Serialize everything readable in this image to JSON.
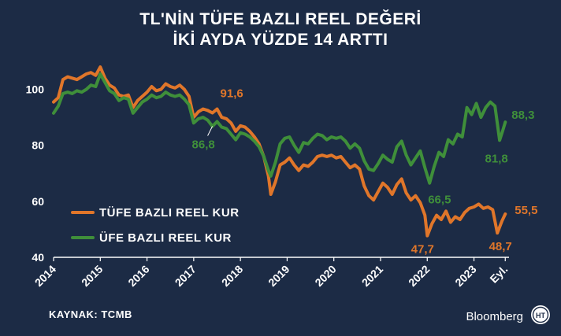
{
  "title_line1": "TL'NİN TÜFE BAZLI REEL DEĞERİ",
  "title_line2": "İKİ AYDA YÜZDE 14 ARTTI",
  "source": "KAYNAK: TCMB",
  "brand": "Bloomberg",
  "brand_logo_text": "HT",
  "colors": {
    "background": "#1c2b45",
    "tufe": "#e0762a",
    "ufe": "#3f8f3a",
    "axis": "#ffffff",
    "grid": "#c9d2de"
  },
  "chart_data": {
    "type": "line",
    "title": "TL'NİN TÜFE BAZLI REEL DEĞERİ İKİ AYDA YÜZDE 14 ARTTI",
    "xlabel": "",
    "ylabel": "",
    "ylim": [
      40,
      110
    ],
    "xlim": [
      2014.0,
      2023.75
    ],
    "yticks": [
      40,
      60,
      80,
      100
    ],
    "xticks": [
      {
        "x": 2014,
        "label": "2014"
      },
      {
        "x": 2015,
        "label": "2015"
      },
      {
        "x": 2016,
        "label": "2016"
      },
      {
        "x": 2017,
        "label": "2017"
      },
      {
        "x": 2018,
        "label": "2018"
      },
      {
        "x": 2019,
        "label": "2019"
      },
      {
        "x": 2020,
        "label": "2020"
      },
      {
        "x": 2021,
        "label": "2021"
      },
      {
        "x": 2022,
        "label": "2022"
      },
      {
        "x": 2023,
        "label": "2023"
      },
      {
        "x": 2023.67,
        "label": "Eyl."
      }
    ],
    "grid": false,
    "legend": {
      "position": "left-middle"
    },
    "series": [
      {
        "name": "TÜFE BAZLI REEL KUR",
        "color": "#e0762a",
        "points": [
          [
            2014.0,
            95.5
          ],
          [
            2014.1,
            97.0
          ],
          [
            2014.2,
            103.5
          ],
          [
            2014.3,
            104.5
          ],
          [
            2014.4,
            104.0
          ],
          [
            2014.5,
            103.5
          ],
          [
            2014.6,
            104.5
          ],
          [
            2014.7,
            105.5
          ],
          [
            2014.8,
            106.0
          ],
          [
            2014.9,
            105.0
          ],
          [
            2015.0,
            108.0
          ],
          [
            2015.1,
            104.0
          ],
          [
            2015.2,
            101.5
          ],
          [
            2015.3,
            100.5
          ],
          [
            2015.4,
            98.0
          ],
          [
            2015.5,
            97.5
          ],
          [
            2015.6,
            98.0
          ],
          [
            2015.7,
            93.5
          ],
          [
            2015.8,
            96.0
          ],
          [
            2015.9,
            97.5
          ],
          [
            2016.0,
            99.0
          ],
          [
            2016.1,
            101.0
          ],
          [
            2016.2,
            99.5
          ],
          [
            2016.3,
            100.0
          ],
          [
            2016.4,
            102.0
          ],
          [
            2016.5,
            101.0
          ],
          [
            2016.6,
            100.5
          ],
          [
            2016.7,
            101.5
          ],
          [
            2016.8,
            100.0
          ],
          [
            2016.9,
            97.5
          ],
          [
            2017.0,
            90.0
          ],
          [
            2017.1,
            92.0
          ],
          [
            2017.2,
            93.0
          ],
          [
            2017.3,
            92.5
          ],
          [
            2017.4,
            91.6
          ],
          [
            2017.5,
            93.0
          ],
          [
            2017.6,
            90.0
          ],
          [
            2017.7,
            89.5
          ],
          [
            2017.8,
            88.0
          ],
          [
            2017.9,
            85.0
          ],
          [
            2018.0,
            87.0
          ],
          [
            2018.1,
            86.5
          ],
          [
            2018.2,
            85.0
          ],
          [
            2018.3,
            83.0
          ],
          [
            2018.4,
            80.5
          ],
          [
            2018.5,
            76.0
          ],
          [
            2018.6,
            69.0
          ],
          [
            2018.65,
            62.5
          ],
          [
            2018.75,
            67.0
          ],
          [
            2018.85,
            73.0
          ],
          [
            2018.95,
            74.0
          ],
          [
            2019.05,
            75.5
          ],
          [
            2019.15,
            73.0
          ],
          [
            2019.25,
            71.0
          ],
          [
            2019.35,
            73.0
          ],
          [
            2019.45,
            72.5
          ],
          [
            2019.55,
            74.0
          ],
          [
            2019.65,
            76.0
          ],
          [
            2019.75,
            76.5
          ],
          [
            2019.85,
            76.0
          ],
          [
            2019.95,
            76.5
          ],
          [
            2020.05,
            75.5
          ],
          [
            2020.15,
            76.0
          ],
          [
            2020.25,
            74.0
          ],
          [
            2020.35,
            72.0
          ],
          [
            2020.45,
            73.0
          ],
          [
            2020.55,
            71.5
          ],
          [
            2020.65,
            65.5
          ],
          [
            2020.75,
            62.0
          ],
          [
            2020.85,
            60.5
          ],
          [
            2020.95,
            63.5
          ],
          [
            2021.05,
            66.5
          ],
          [
            2021.15,
            65.0
          ],
          [
            2021.25,
            62.5
          ],
          [
            2021.35,
            66.0
          ],
          [
            2021.45,
            68.0
          ],
          [
            2021.55,
            63.0
          ],
          [
            2021.65,
            60.5
          ],
          [
            2021.75,
            62.0
          ],
          [
            2021.85,
            59.5
          ],
          [
            2021.95,
            55.0
          ],
          [
            2022.0,
            47.7
          ],
          [
            2022.1,
            52.0
          ],
          [
            2022.2,
            55.0
          ],
          [
            2022.3,
            53.5
          ],
          [
            2022.4,
            56.5
          ],
          [
            2022.5,
            52.5
          ],
          [
            2022.6,
            54.5
          ],
          [
            2022.7,
            53.5
          ],
          [
            2022.8,
            56.0
          ],
          [
            2022.9,
            57.5
          ],
          [
            2023.0,
            58.0
          ],
          [
            2023.1,
            59.0
          ],
          [
            2023.2,
            57.5
          ],
          [
            2023.3,
            58.0
          ],
          [
            2023.4,
            57.0
          ],
          [
            2023.5,
            48.7
          ],
          [
            2023.6,
            53.0
          ],
          [
            2023.67,
            55.5
          ]
        ]
      },
      {
        "name": "ÜFE BAZLI REEL KUR",
        "color": "#3f8f3a",
        "points": [
          [
            2014.0,
            91.5
          ],
          [
            2014.1,
            94.0
          ],
          [
            2014.2,
            98.5
          ],
          [
            2014.3,
            99.0
          ],
          [
            2014.4,
            98.5
          ],
          [
            2014.5,
            99.5
          ],
          [
            2014.6,
            99.0
          ],
          [
            2014.7,
            100.0
          ],
          [
            2014.8,
            101.5
          ],
          [
            2014.9,
            101.0
          ],
          [
            2015.0,
            105.5
          ],
          [
            2015.1,
            102.5
          ],
          [
            2015.2,
            99.5
          ],
          [
            2015.3,
            98.5
          ],
          [
            2015.4,
            96.0
          ],
          [
            2015.5,
            97.0
          ],
          [
            2015.6,
            96.5
          ],
          [
            2015.7,
            91.5
          ],
          [
            2015.8,
            93.5
          ],
          [
            2015.9,
            95.5
          ],
          [
            2016.0,
            96.5
          ],
          [
            2016.1,
            98.0
          ],
          [
            2016.2,
            97.0
          ],
          [
            2016.3,
            97.5
          ],
          [
            2016.4,
            99.0
          ],
          [
            2016.5,
            98.0
          ],
          [
            2016.6,
            97.5
          ],
          [
            2016.7,
            98.0
          ],
          [
            2016.8,
            96.5
          ],
          [
            2016.9,
            94.5
          ],
          [
            2017.0,
            88.0
          ],
          [
            2017.1,
            89.5
          ],
          [
            2017.2,
            90.0
          ],
          [
            2017.3,
            89.0
          ],
          [
            2017.4,
            86.8
          ],
          [
            2017.5,
            88.5
          ],
          [
            2017.6,
            86.5
          ],
          [
            2017.7,
            86.0
          ],
          [
            2017.8,
            84.0
          ],
          [
            2017.9,
            82.0
          ],
          [
            2018.0,
            84.5
          ],
          [
            2018.1,
            84.0
          ],
          [
            2018.2,
            83.0
          ],
          [
            2018.3,
            81.5
          ],
          [
            2018.4,
            79.5
          ],
          [
            2018.5,
            76.0
          ],
          [
            2018.6,
            71.0
          ],
          [
            2018.65,
            69.0
          ],
          [
            2018.75,
            74.0
          ],
          [
            2018.85,
            80.5
          ],
          [
            2018.95,
            82.5
          ],
          [
            2019.05,
            83.0
          ],
          [
            2019.15,
            80.0
          ],
          [
            2019.25,
            77.5
          ],
          [
            2019.35,
            81.0
          ],
          [
            2019.45,
            80.5
          ],
          [
            2019.55,
            82.5
          ],
          [
            2019.65,
            84.0
          ],
          [
            2019.75,
            83.5
          ],
          [
            2019.85,
            82.0
          ],
          [
            2019.95,
            83.0
          ],
          [
            2020.05,
            82.5
          ],
          [
            2020.15,
            83.0
          ],
          [
            2020.25,
            81.5
          ],
          [
            2020.35,
            79.0
          ],
          [
            2020.45,
            80.5
          ],
          [
            2020.55,
            79.0
          ],
          [
            2020.65,
            74.5
          ],
          [
            2020.75,
            71.5
          ],
          [
            2020.85,
            71.0
          ],
          [
            2020.95,
            73.5
          ],
          [
            2021.05,
            76.5
          ],
          [
            2021.15,
            75.0
          ],
          [
            2021.25,
            74.0
          ],
          [
            2021.35,
            79.5
          ],
          [
            2021.45,
            81.5
          ],
          [
            2021.55,
            76.5
          ],
          [
            2021.65,
            73.0
          ],
          [
            2021.75,
            75.5
          ],
          [
            2021.85,
            78.0
          ],
          [
            2021.95,
            72.0
          ],
          [
            2022.05,
            66.5
          ],
          [
            2022.15,
            72.5
          ],
          [
            2022.25,
            77.5
          ],
          [
            2022.35,
            76.0
          ],
          [
            2022.45,
            82.0
          ],
          [
            2022.55,
            80.5
          ],
          [
            2022.65,
            84.0
          ],
          [
            2022.75,
            83.0
          ],
          [
            2022.85,
            93.5
          ],
          [
            2022.95,
            91.0
          ],
          [
            2023.05,
            95.0
          ],
          [
            2023.15,
            90.0
          ],
          [
            2023.25,
            93.5
          ],
          [
            2023.35,
            95.5
          ],
          [
            2023.45,
            94.0
          ],
          [
            2023.55,
            81.8
          ],
          [
            2023.62,
            85.5
          ],
          [
            2023.67,
            88.3
          ]
        ]
      }
    ],
    "annotations": [
      {
        "text": "91,6",
        "x": 2017.4,
        "y": 91.6,
        "series": "TÜFE BAZLI REEL KUR"
      },
      {
        "text": "86,8",
        "x": 2017.4,
        "y": 86.8,
        "series": "ÜFE BAZLI REEL KUR"
      },
      {
        "text": "66,5",
        "x": 2022.05,
        "y": 66.5,
        "series": "ÜFE BAZLI REEL KUR"
      },
      {
        "text": "47,7",
        "x": 2022.0,
        "y": 47.7,
        "series": "TÜFE BAZLI REEL KUR"
      },
      {
        "text": "81,8",
        "x": 2023.55,
        "y": 81.8,
        "series": "ÜFE BAZLI REEL KUR"
      },
      {
        "text": "48,7",
        "x": 2023.5,
        "y": 48.7,
        "series": "TÜFE BAZLI REEL KUR"
      },
      {
        "text": "88,3",
        "x": 2023.67,
        "y": 88.3,
        "series": "ÜFE BAZLI REEL KUR"
      },
      {
        "text": "55,5",
        "x": 2023.67,
        "y": 55.5,
        "series": "TÜFE BAZLI REEL KUR"
      }
    ]
  }
}
